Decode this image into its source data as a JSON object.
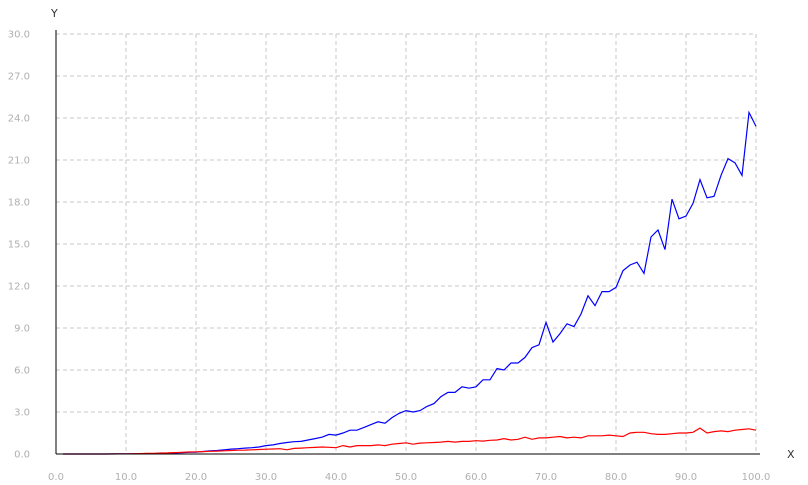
{
  "chart_data": {
    "type": "line",
    "xlabel": "X",
    "ylabel": "Y",
    "xlim": [
      0,
      100
    ],
    "ylim": [
      0,
      30
    ],
    "x_ticks": [
      "0.0",
      "10.0",
      "20.0",
      "30.0",
      "40.0",
      "50.0",
      "60.0",
      "70.0",
      "80.0",
      "90.0",
      "100.0"
    ],
    "y_ticks": [
      "0.0",
      "3.0",
      "6.0",
      "9.0",
      "12.0",
      "15.0",
      "18.0",
      "21.0",
      "24.0",
      "27.0",
      "30.0"
    ],
    "grid": true,
    "legend": "none",
    "series": [
      {
        "color": "#0000ff",
        "x": [
          1,
          2,
          3,
          4,
          5,
          6,
          7,
          8,
          9,
          10,
          11,
          12,
          13,
          14,
          15,
          16,
          17,
          18,
          19,
          20,
          21,
          22,
          23,
          24,
          25,
          26,
          27,
          28,
          29,
          30,
          31,
          32,
          33,
          34,
          35,
          36,
          37,
          38,
          39,
          40,
          41,
          42,
          43,
          44,
          45,
          46,
          47,
          48,
          49,
          50,
          51,
          52,
          53,
          54,
          55,
          56,
          57,
          58,
          59,
          60,
          61,
          62,
          63,
          64,
          65,
          66,
          67,
          68,
          69,
          70,
          71,
          72,
          73,
          74,
          75,
          76,
          77,
          78,
          79,
          80,
          81,
          82,
          83,
          84,
          85,
          86,
          87,
          88,
          89,
          90,
          91,
          92,
          93,
          94,
          95,
          96,
          97,
          98,
          99,
          100
        ],
        "y": [
          0,
          0,
          0,
          0,
          0,
          0,
          0,
          0.01,
          0.01,
          0.01,
          0.01,
          0.02,
          0.02,
          0.03,
          0.05,
          0.06,
          0.08,
          0.1,
          0.12,
          0.13,
          0.18,
          0.22,
          0.25,
          0.3,
          0.35,
          0.38,
          0.42,
          0.45,
          0.5,
          0.6,
          0.65,
          0.75,
          0.82,
          0.88,
          0.9,
          1.0,
          1.1,
          1.2,
          1.4,
          1.35,
          1.5,
          1.7,
          1.7,
          1.9,
          2.1,
          2.3,
          2.2,
          2.6,
          2.9,
          3.1,
          3.0,
          3.1,
          3.4,
          3.6,
          4.1,
          4.4,
          4.4,
          4.8,
          4.7,
          4.8,
          5.3,
          5.3,
          6.1,
          6.0,
          6.5,
          6.5,
          6.9,
          7.6,
          7.8,
          9.4,
          8.0,
          8.6,
          9.3,
          9.1,
          10.0,
          11.3,
          10.6,
          11.6,
          11.6,
          11.9,
          13.1,
          13.5,
          13.7,
          12.9,
          15.5,
          16.0,
          14.6,
          18.2,
          16.8,
          17.0,
          17.9,
          19.6,
          18.3,
          18.4,
          19.9,
          21.1,
          20.8,
          19.9,
          24.4,
          23.4
        ]
      },
      {
        "color": "#ff0000",
        "x": [
          1,
          2,
          3,
          4,
          5,
          6,
          7,
          8,
          9,
          10,
          11,
          12,
          13,
          14,
          15,
          16,
          17,
          18,
          19,
          20,
          21,
          22,
          23,
          24,
          25,
          26,
          27,
          28,
          29,
          30,
          31,
          32,
          33,
          34,
          35,
          36,
          37,
          38,
          39,
          40,
          41,
          42,
          43,
          44,
          45,
          46,
          47,
          48,
          49,
          50,
          51,
          52,
          53,
          54,
          55,
          56,
          57,
          58,
          59,
          60,
          61,
          62,
          63,
          64,
          65,
          66,
          67,
          68,
          69,
          70,
          71,
          72,
          73,
          74,
          75,
          76,
          77,
          78,
          79,
          80,
          81,
          82,
          83,
          84,
          85,
          86,
          87,
          88,
          89,
          90,
          91,
          92,
          93,
          94,
          95,
          96,
          97,
          98,
          99,
          100
        ],
        "y": [
          0,
          0,
          0,
          0,
          0,
          0,
          0,
          0,
          0.01,
          0.01,
          0.02,
          0.03,
          0.04,
          0.05,
          0.07,
          0.08,
          0.1,
          0.12,
          0.14,
          0.16,
          0.17,
          0.19,
          0.21,
          0.23,
          0.25,
          0.27,
          0.28,
          0.3,
          0.32,
          0.34,
          0.36,
          0.38,
          0.3,
          0.4,
          0.42,
          0.45,
          0.47,
          0.5,
          0.48,
          0.45,
          0.6,
          0.5,
          0.6,
          0.6,
          0.6,
          0.65,
          0.6,
          0.7,
          0.75,
          0.8,
          0.7,
          0.78,
          0.8,
          0.82,
          0.85,
          0.9,
          0.85,
          0.9,
          0.9,
          0.95,
          0.92,
          0.98,
          1.0,
          1.1,
          1.0,
          1.05,
          1.2,
          1.05,
          1.15,
          1.15,
          1.2,
          1.25,
          1.15,
          1.2,
          1.15,
          1.3,
          1.3,
          1.3,
          1.35,
          1.3,
          1.25,
          1.5,
          1.55,
          1.55,
          1.45,
          1.4,
          1.4,
          1.45,
          1.5,
          1.5,
          1.55,
          1.85,
          1.5,
          1.6,
          1.65,
          1.6,
          1.7,
          1.75,
          1.8,
          1.7
        ]
      }
    ]
  }
}
